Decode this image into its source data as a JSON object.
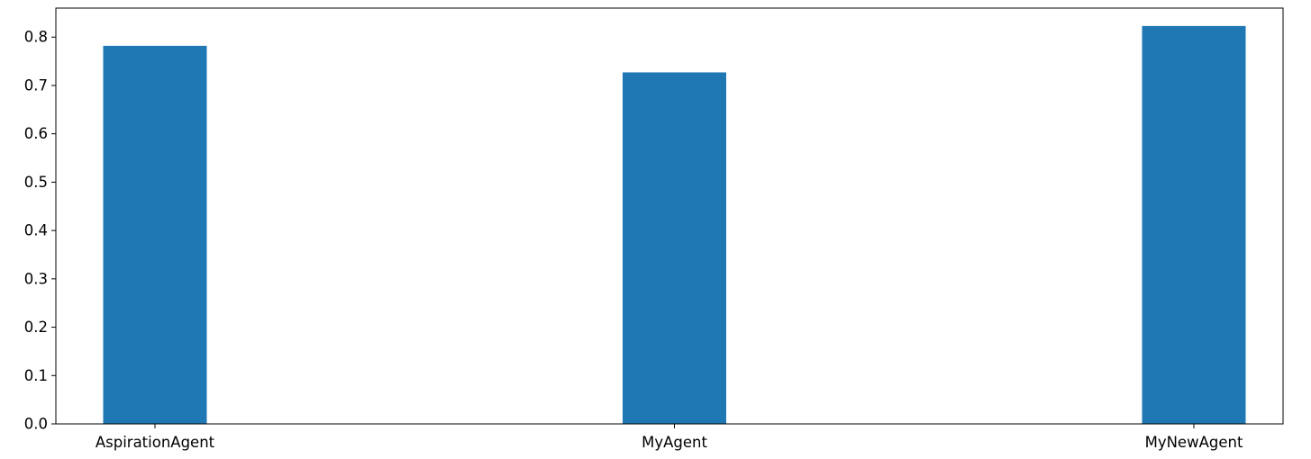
{
  "chart_data": {
    "type": "bar",
    "title": "",
    "xlabel": "",
    "ylabel": "",
    "categories": [
      "AspirationAgent",
      "MyAgent",
      "MyNewAgent"
    ],
    "values": [
      0.782,
      0.727,
      0.823
    ],
    "ylim": [
      0,
      0.86
    ],
    "yticks": [
      0.0,
      0.1,
      0.2,
      0.3,
      0.4,
      0.5,
      0.6,
      0.7,
      0.8
    ],
    "ytick_labels": [
      "0.0",
      "0.1",
      "0.2",
      "0.3",
      "0.4",
      "0.5",
      "0.6",
      "0.7",
      "0.8"
    ],
    "grid": false,
    "legend": "none",
    "bar_color": "#1f77b4"
  }
}
